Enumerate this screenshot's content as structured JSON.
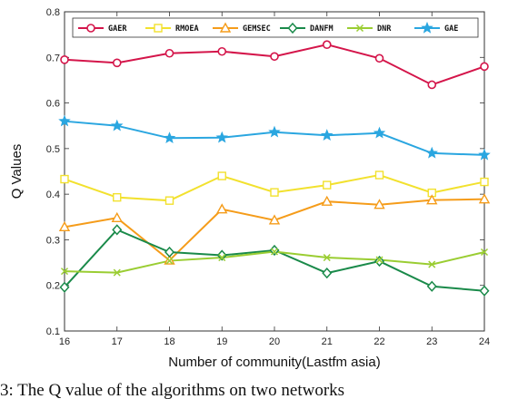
{
  "caption": "3: The Q value of the algorithms on two networks",
  "chart_data": {
    "type": "line",
    "title": "",
    "xlabel": "Number of community(Lastfm asia)",
    "ylabel": "Q Values",
    "x": [
      16,
      17,
      18,
      19,
      20,
      21,
      22,
      23,
      24
    ],
    "xlim": [
      16,
      24
    ],
    "ylim": [
      0.1,
      0.8
    ],
    "yticks": [
      "0.1",
      "0.2",
      "0.3",
      "0.4",
      "0.5",
      "0.6",
      "0.7",
      "0.8"
    ],
    "grid": false,
    "legend_position": "top",
    "series": [
      {
        "name": "GAER",
        "color": "#d4154a",
        "marker": "circle",
        "values": [
          0.695,
          0.688,
          0.709,
          0.713,
          0.702,
          0.728,
          0.698,
          0.64,
          0.68
        ]
      },
      {
        "name": "RMOEA",
        "color": "#f2e12e",
        "marker": "square",
        "values": [
          0.433,
          0.393,
          0.386,
          0.44,
          0.404,
          0.42,
          0.442,
          0.403,
          0.427
        ]
      },
      {
        "name": "GEMSEC",
        "color": "#f59c1a",
        "marker": "triangle",
        "values": [
          0.328,
          0.348,
          0.255,
          0.367,
          0.343,
          0.384,
          0.377,
          0.387,
          0.389
        ]
      },
      {
        "name": "DANFM",
        "color": "#1a8a4a",
        "marker": "diamond",
        "values": [
          0.196,
          0.322,
          0.273,
          0.266,
          0.277,
          0.227,
          0.253,
          0.198,
          0.188
        ]
      },
      {
        "name": "DNR",
        "color": "#9acd32",
        "marker": "x",
        "values": [
          0.231,
          0.228,
          0.254,
          0.261,
          0.274,
          0.261,
          0.256,
          0.246,
          0.273
        ]
      },
      {
        "name": "GAE",
        "color": "#2aa6e0",
        "marker": "star",
        "values": [
          0.56,
          0.55,
          0.523,
          0.524,
          0.536,
          0.529,
          0.534,
          0.49,
          0.486
        ]
      }
    ]
  }
}
